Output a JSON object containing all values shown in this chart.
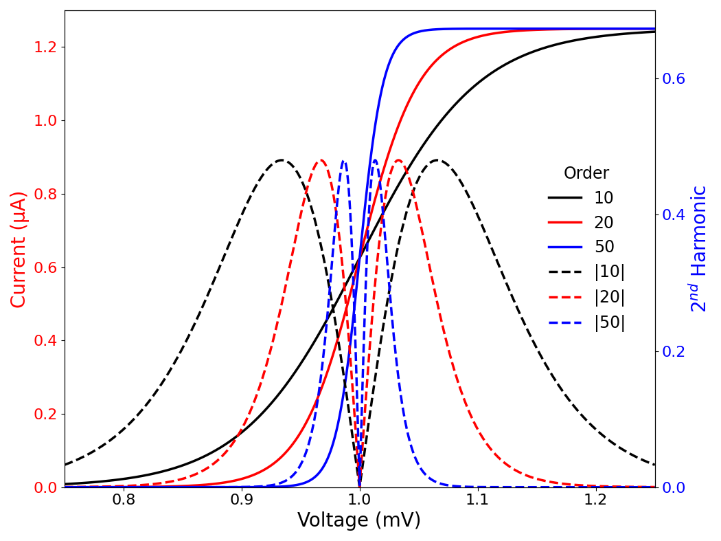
{
  "xlabel": "Voltage (mV)",
  "ylabel_left": "Current (μA)",
  "ylabel_right": "2$^{nd}$ Harmonic",
  "xlim": [
    0.75,
    1.25
  ],
  "ylim_left": [
    0.0,
    1.3
  ],
  "ylim_right": [
    0.0,
    0.7
  ],
  "V0": 1.0,
  "I_max": 1.25,
  "orders": [
    10,
    20,
    50
  ],
  "colors": [
    "black",
    "red",
    "blue"
  ],
  "linewidth": 2.5,
  "fontsize_labels": 20,
  "fontsize_ticks": 16,
  "fontsize_legend": 17,
  "xticks": [
    0.8,
    0.9,
    1.0,
    1.1,
    1.2
  ],
  "yticks_left": [
    0.0,
    0.2,
    0.4,
    0.6,
    0.8,
    1.0,
    1.2
  ],
  "yticks_right": [
    0.0,
    0.2,
    0.4,
    0.6
  ],
  "dashed_scale": 0.48,
  "legend_title": "Order",
  "legend_labels": [
    "10",
    "20",
    "50",
    "|10|",
    "|20|",
    "|50|"
  ]
}
